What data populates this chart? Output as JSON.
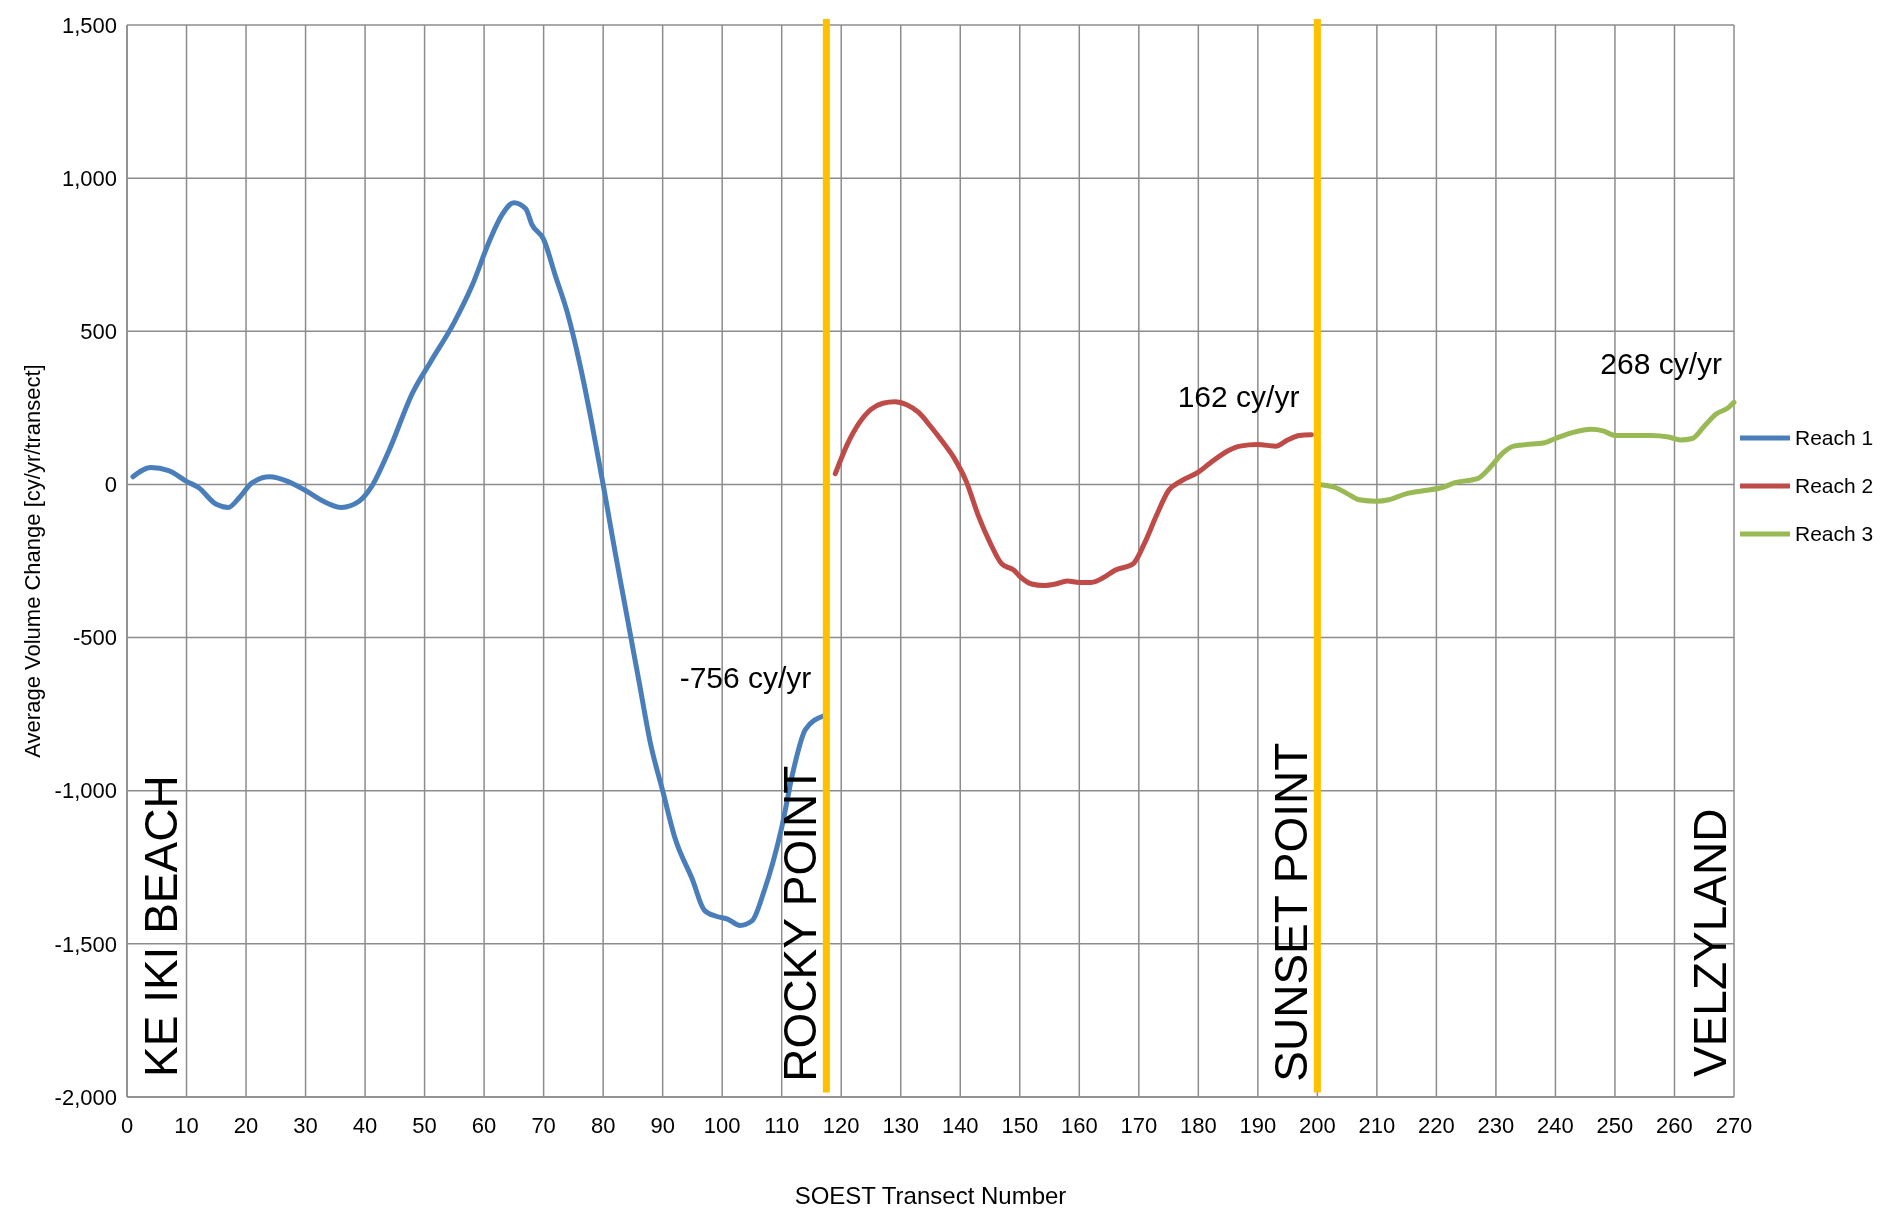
{
  "chart_data": {
    "type": "line",
    "xlabel": "SOEST Transect Number",
    "ylabel": "Average Volume Change [cy/yr/transect]",
    "xlim": [
      0,
      270
    ],
    "xticks": [
      0,
      10,
      20,
      30,
      40,
      50,
      60,
      70,
      80,
      90,
      100,
      110,
      120,
      130,
      140,
      150,
      160,
      170,
      180,
      190,
      200,
      210,
      220,
      230,
      240,
      250,
      260,
      270
    ],
    "ylim": [
      -2000,
      1500
    ],
    "yticks": [
      {
        "value": -2000,
        "label": "-2,000"
      },
      {
        "value": -1500,
        "label": "-1,500"
      },
      {
        "value": -1000,
        "label": "-1,000"
      },
      -500,
      0,
      500,
      {
        "value": 1000,
        "label": "1,000"
      },
      {
        "value": 1500,
        "label": "1,500"
      }
    ],
    "grid": true,
    "legend": "right",
    "line_style": "solid",
    "series": [
      {
        "name": "Reach 1",
        "color": "#4a7ebb",
        "x": [
          1,
          4,
          7,
          10,
          12,
          15,
          17,
          19,
          21,
          24,
          27,
          30,
          33,
          36,
          39,
          41,
          44,
          48,
          51,
          55,
          58,
          61,
          63,
          65,
          67,
          68,
          70,
          72,
          74,
          76,
          78,
          80,
          82,
          84,
          86,
          88,
          90,
          92,
          95,
          97,
          99,
          101,
          103,
          105,
          107,
          110,
          112,
          114,
          117
        ],
        "values": [
          25,
          55,
          45,
          10,
          -10,
          -65,
          -75,
          -40,
          5,
          25,
          10,
          -20,
          -55,
          -75,
          -55,
          -10,
          110,
          300,
          400,
          530,
          650,
          800,
          880,
          920,
          900,
          850,
          800,
          680,
          560,
          400,
          210,
          0,
          -220,
          -430,
          -640,
          -850,
          -1000,
          -1150,
          -1290,
          -1390,
          -1410,
          -1420,
          -1440,
          -1425,
          -1330,
          -1120,
          -930,
          -800,
          -756
        ]
      },
      {
        "name": "Reach 2",
        "color": "#be4b48",
        "x": [
          119,
          121,
          123,
          125,
          127,
          129,
          131,
          133,
          135,
          137,
          139,
          141,
          143,
          145,
          147,
          149,
          150,
          152,
          154,
          156,
          158,
          160,
          162,
          164,
          166,
          169,
          171,
          173,
          175,
          177,
          180,
          182,
          185,
          187,
          190,
          193,
          195,
          197,
          199
        ],
        "values": [
          35,
          130,
          200,
          245,
          265,
          270,
          260,
          235,
          190,
          140,
          85,
          10,
          -100,
          -190,
          -260,
          -280,
          -300,
          -325,
          -330,
          -325,
          -315,
          -320,
          -320,
          -305,
          -280,
          -260,
          -190,
          -100,
          -20,
          10,
          40,
          70,
          110,
          125,
          130,
          125,
          145,
          160,
          162
        ]
      },
      {
        "name": "Reach 3",
        "color": "#98b954",
        "x": [
          200,
          203,
          205,
          207,
          210,
          212,
          215,
          218,
          221,
          223,
          227,
          229,
          231,
          233,
          235,
          238,
          240,
          243,
          246,
          248,
          250,
          253,
          256,
          259,
          261,
          263,
          265,
          267,
          269,
          270
        ],
        "values": [
          0,
          -10,
          -30,
          -50,
          -55,
          -50,
          -30,
          -20,
          -10,
          5,
          20,
          55,
          100,
          125,
          130,
          135,
          150,
          170,
          180,
          175,
          160,
          160,
          160,
          155,
          145,
          150,
          190,
          230,
          250,
          268
        ]
      }
    ],
    "ref_lines": [
      {
        "axis": "x",
        "value": 117.5,
        "label": "ROCKY POINT",
        "color": "#ffc000"
      },
      {
        "axis": "x",
        "value": 200,
        "label": "SUNSET POINT",
        "color": "#ffc000"
      }
    ],
    "annotations": [
      {
        "text": "-756 cy/yr",
        "x": 117,
        "y": -756
      },
      {
        "text": "162 cy/yr",
        "x": 199,
        "y": 162
      },
      {
        "text": "268 cy/yr",
        "x": 270,
        "y": 268
      },
      "KE IKI BEACH",
      "VELZYLAND"
    ]
  }
}
